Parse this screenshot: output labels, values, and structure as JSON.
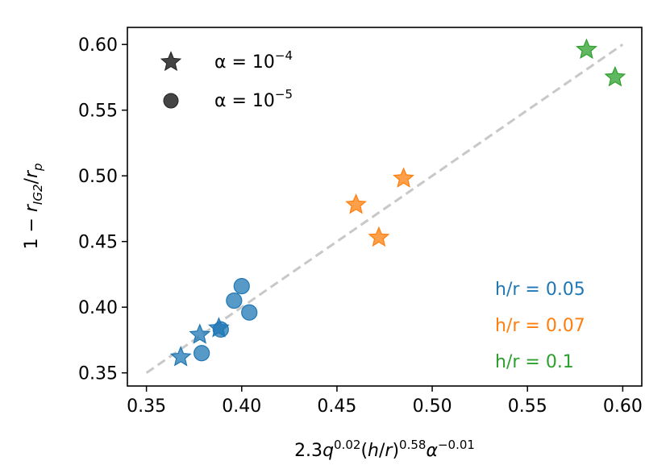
{
  "chart_data": {
    "type": "scatter",
    "xlabel": "2.3q^{0.02}(h/r)^{0.58}α^{-0.01}",
    "ylabel": "1 − r_{IG2}/r_p",
    "xlim": [
      0.34,
      0.61
    ],
    "ylim": [
      0.34,
      0.613
    ],
    "xticks": [
      0.35,
      0.4,
      0.45,
      0.5,
      0.55,
      0.6
    ],
    "yticks": [
      0.35,
      0.4,
      0.45,
      0.5,
      0.55,
      0.6
    ],
    "xtick_labels": [
      "0.35",
      "0.40",
      "0.45",
      "0.50",
      "0.55",
      "0.60"
    ],
    "ytick_labels": [
      "0.35",
      "0.40",
      "0.45",
      "0.50",
      "0.55",
      "0.60"
    ],
    "reference_line": {
      "x": [
        0.35,
        0.6
      ],
      "y": [
        0.35,
        0.6
      ],
      "style": "dashed",
      "color": "#c8c8c8"
    },
    "legend": [
      {
        "marker": "star",
        "label": "α = 10^{-4}",
        "base": "α = 10",
        "exp": "−4"
      },
      {
        "marker": "circle",
        "label": "α = 10^{-5}",
        "base": "α = 10",
        "exp": "−5"
      }
    ],
    "legend_position": "top-left",
    "series": [
      {
        "name": "h/r = 0.05",
        "color": "#1f77b4",
        "points": [
          {
            "x": 0.368,
            "y": 0.362,
            "marker": "star"
          },
          {
            "x": 0.378,
            "y": 0.379,
            "marker": "star"
          },
          {
            "x": 0.388,
            "y": 0.384,
            "marker": "star"
          },
          {
            "x": 0.379,
            "y": 0.365,
            "marker": "circle"
          },
          {
            "x": 0.389,
            "y": 0.383,
            "marker": "circle"
          },
          {
            "x": 0.396,
            "y": 0.405,
            "marker": "circle"
          },
          {
            "x": 0.4,
            "y": 0.416,
            "marker": "circle"
          },
          {
            "x": 0.404,
            "y": 0.396,
            "marker": "circle"
          }
        ]
      },
      {
        "name": "h/r = 0.07",
        "color": "#ff7f0e",
        "points": [
          {
            "x": 0.46,
            "y": 0.478,
            "marker": "star"
          },
          {
            "x": 0.472,
            "y": 0.453,
            "marker": "star"
          },
          {
            "x": 0.485,
            "y": 0.498,
            "marker": "star"
          }
        ]
      },
      {
        "name": "h/r = 0.1",
        "color": "#2ca02c",
        "points": [
          {
            "x": 0.581,
            "y": 0.596,
            "marker": "star"
          },
          {
            "x": 0.596,
            "y": 0.575,
            "marker": "star"
          }
        ]
      }
    ],
    "annotations": [
      {
        "text": "h/r = 0.05",
        "color": "#1f77b4"
      },
      {
        "text": "h/r = 0.07",
        "color": "#ff7f0e"
      },
      {
        "text": "h/r = 0.1",
        "color": "#2ca02c"
      }
    ]
  }
}
